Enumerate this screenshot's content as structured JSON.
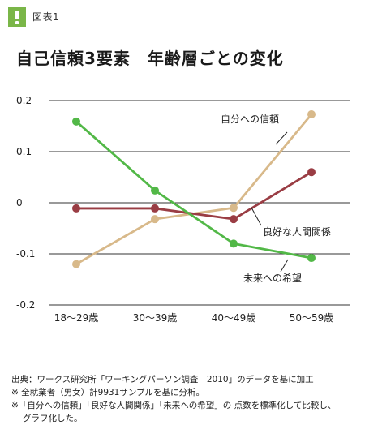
{
  "figure_label": "図表1",
  "title": "自己信頼3要素　年齢層ごとの変化",
  "chart_data": {
    "type": "line",
    "categories": [
      "18〜29歳",
      "30〜39歳",
      "40〜49歳",
      "50〜59歳"
    ],
    "yticks": [
      "0.2",
      "0.1",
      "0",
      "-0.1",
      "-0.2"
    ],
    "ylim": [
      -0.2,
      0.2
    ],
    "grid": true,
    "series": [
      {
        "name": "自分への信頼",
        "color": "#d8b98a",
        "values": [
          -0.12,
          -0.032,
          -0.01,
          0.173
        ]
      },
      {
        "name": "良好な人間関係",
        "color": "#9a3d44",
        "values": [
          -0.011,
          -0.011,
          -0.032,
          0.06
        ]
      },
      {
        "name": "未来への希望",
        "color": "#52b847",
        "values": [
          0.159,
          0.024,
          -0.08,
          -0.108
        ]
      }
    ]
  },
  "notes": [
    "出典：ワークス研究所「ワーキングパーソン調査　2010」のデータを基に加工",
    "※ 全就業者（男女）計9931サンプルを基に分析。",
    "※「自分への信頼」「良好な人間関係」「未来への希望」の 点数を標準化して比較し、",
    "グラフ化した。"
  ]
}
